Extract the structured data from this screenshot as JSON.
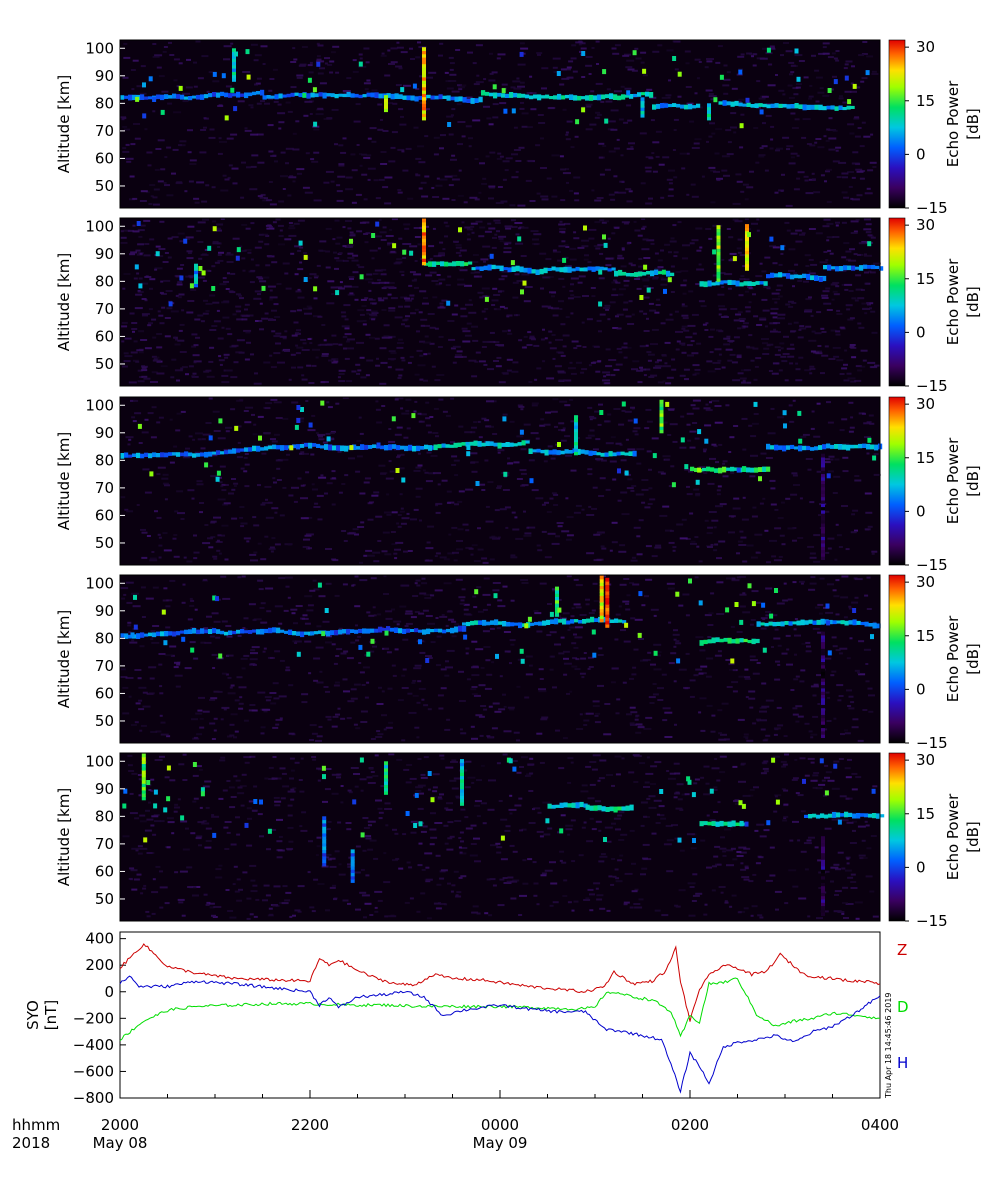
{
  "chart_data": [
    {
      "type": "heatmap",
      "panel": 1,
      "ylabel": "Altitude [km]",
      "ylim": [
        42,
        103
      ],
      "yticks": [
        50,
        60,
        70,
        80,
        90,
        100
      ],
      "colorbar": {
        "label_line1": "Echo Power",
        "label_line2": "[dB]",
        "range": [
          -15,
          32
        ],
        "ticks": [
          30,
          15,
          0,
          -15
        ]
      },
      "layers": [
        {
          "t0": 20.0,
          "t1": 21.5,
          "alt": 82,
          "power": 2
        },
        {
          "t0": 21.5,
          "t1": 23.8,
          "alt": 82,
          "power": 3
        },
        {
          "t0": 23.8,
          "t1": 25.6,
          "alt": 84,
          "power": 8
        },
        {
          "t0": 25.6,
          "t1": 26.1,
          "alt": 79,
          "power": 5
        },
        {
          "t0": 26.3,
          "t1": 27.7,
          "alt": 80,
          "power": 6
        }
      ],
      "columns": [
        {
          "t": 23.2,
          "a0": 74,
          "a1": 100,
          "power": 24
        },
        {
          "t": 22.8,
          "a0": 77,
          "a1": 82,
          "power": 18
        },
        {
          "t": 21.2,
          "a0": 88,
          "a1": 99,
          "power": 8
        },
        {
          "t": 25.5,
          "a0": 75,
          "a1": 82,
          "power": 6
        },
        {
          "t": 26.2,
          "a0": 74,
          "a1": 80,
          "power": 10
        }
      ]
    },
    {
      "type": "heatmap",
      "panel": 2,
      "ylabel": "Altitude [km]",
      "ylim": [
        42,
        103
      ],
      "yticks": [
        50,
        60,
        70,
        80,
        90,
        100
      ],
      "colorbar": {
        "label_line1": "Echo Power",
        "label_line2": "[dB]",
        "range": [
          -15,
          32
        ],
        "ticks": [
          30,
          15,
          0,
          -15
        ]
      },
      "layers": [
        {
          "t0": 23.2,
          "t1": 23.7,
          "alt": 86,
          "power": 10
        },
        {
          "t0": 23.7,
          "t1": 25.2,
          "alt": 85,
          "power": 5
        },
        {
          "t0": 25.2,
          "t1": 25.8,
          "alt": 83,
          "power": 8
        },
        {
          "t0": 26.1,
          "t1": 26.8,
          "alt": 79,
          "power": 6
        },
        {
          "t0": 26.8,
          "t1": 27.4,
          "alt": 82,
          "power": 4
        },
        {
          "t0": 27.4,
          "t1": 28.0,
          "alt": 85,
          "power": 3
        }
      ],
      "columns": [
        {
          "t": 23.2,
          "a0": 86,
          "a1": 102,
          "power": 26
        },
        {
          "t": 26.3,
          "a0": 80,
          "a1": 100,
          "power": 18
        },
        {
          "t": 26.6,
          "a0": 84,
          "a1": 100,
          "power": 22
        },
        {
          "t": 20.8,
          "a0": 78,
          "a1": 86,
          "power": 6
        }
      ]
    },
    {
      "type": "heatmap",
      "panel": 3,
      "ylabel": "Altitude [km]",
      "ylim": [
        42,
        103
      ],
      "yticks": [
        50,
        60,
        70,
        80,
        90,
        100
      ],
      "colorbar": {
        "label_line1": "Echo Power",
        "label_line2": "[dB]",
        "range": [
          -15,
          32
        ],
        "ticks": [
          30,
          15,
          0,
          -15
        ]
      },
      "layers": [
        {
          "t0": 20.0,
          "t1": 23.3,
          "alt": 82,
          "power": 3
        },
        {
          "t0": 23.3,
          "t1": 24.3,
          "alt": 85,
          "power": 8
        },
        {
          "t0": 24.3,
          "t1": 25.4,
          "alt": 83,
          "power": 6
        },
        {
          "t0": 26.0,
          "t1": 26.8,
          "alt": 77,
          "power": 12
        },
        {
          "t0": 26.8,
          "t1": 28.0,
          "alt": 85,
          "power": 5
        }
      ],
      "columns": [
        {
          "t": 25.7,
          "a0": 90,
          "a1": 101,
          "power": 16
        },
        {
          "t": 24.8,
          "a0": 82,
          "a1": 96,
          "power": 8
        },
        {
          "t": 27.4,
          "a0": 44,
          "a1": 82,
          "power": -10
        }
      ]
    },
    {
      "type": "heatmap",
      "panel": 4,
      "ylabel": "Altitude [km]",
      "ylim": [
        42,
        103
      ],
      "yticks": [
        50,
        60,
        70,
        80,
        90,
        100
      ],
      "colorbar": {
        "label_line1": "Echo Power",
        "label_line2": "[dB]",
        "range": [
          -15,
          32
        ],
        "ticks": [
          30,
          15,
          0,
          -15
        ]
      },
      "layers": [
        {
          "t0": 20.0,
          "t1": 22.0,
          "alt": 81,
          "power": 3
        },
        {
          "t0": 22.0,
          "t1": 23.6,
          "alt": 82,
          "power": 2
        },
        {
          "t0": 23.6,
          "t1": 25.3,
          "alt": 85,
          "power": 6
        },
        {
          "t0": 26.1,
          "t1": 26.7,
          "alt": 78,
          "power": 12
        },
        {
          "t0": 26.7,
          "t1": 28.0,
          "alt": 85,
          "power": 6
        }
      ],
      "columns": [
        {
          "t": 25.13,
          "a0": 84,
          "a1": 102,
          "power": 30
        },
        {
          "t": 25.07,
          "a0": 86,
          "a1": 102,
          "power": 22
        },
        {
          "t": 24.6,
          "a0": 88,
          "a1": 98,
          "power": 12
        },
        {
          "t": 27.4,
          "a0": 44,
          "a1": 82,
          "power": -10
        }
      ]
    },
    {
      "type": "heatmap",
      "panel": 5,
      "ylabel": "Altitude [km]",
      "ylim": [
        42,
        103
      ],
      "yticks": [
        50,
        60,
        70,
        80,
        90,
        100
      ],
      "colorbar": {
        "label_line1": "Echo Power",
        "label_line2": "[dB]",
        "range": [
          -15,
          32
        ],
        "ticks": [
          30,
          15,
          0,
          -15
        ]
      },
      "layers": [
        {
          "t0": 24.5,
          "t1": 24.9,
          "alt": 84,
          "power": 8
        },
        {
          "t0": 24.9,
          "t1": 25.4,
          "alt": 83,
          "power": 10
        },
        {
          "t0": 26.1,
          "t1": 26.6,
          "alt": 77,
          "power": 10
        },
        {
          "t0": 27.2,
          "t1": 28.0,
          "alt": 80,
          "power": 5
        }
      ],
      "columns": [
        {
          "t": 20.25,
          "a0": 86,
          "a1": 102,
          "power": 15
        },
        {
          "t": 22.8,
          "a0": 88,
          "a1": 100,
          "power": 10
        },
        {
          "t": 23.6,
          "a0": 84,
          "a1": 100,
          "power": 8
        },
        {
          "t": 22.15,
          "a0": 62,
          "a1": 80,
          "power": 2
        },
        {
          "t": 22.45,
          "a0": 56,
          "a1": 68,
          "power": 2
        },
        {
          "t": 27.4,
          "a0": 44,
          "a1": 72,
          "power": -10
        }
      ]
    },
    {
      "type": "line",
      "ylabel_line1": "SYO",
      "ylabel_line2": "[nT]",
      "ylim": [
        -800,
        450
      ],
      "yticks": [
        400,
        200,
        0,
        -200,
        -400,
        -600,
        -800
      ],
      "xlim_hours": [
        20,
        28
      ],
      "series": [
        {
          "name": "Z",
          "color": "#cc0000",
          "t": [
            20.0,
            20.25,
            20.5,
            20.8,
            21.2,
            21.6,
            22.0,
            22.1,
            22.2,
            22.3,
            22.5,
            22.7,
            22.9,
            23.1,
            23.3,
            23.5,
            23.8,
            24.0,
            24.3,
            24.6,
            24.9,
            25.1,
            25.2,
            25.4,
            25.6,
            25.75,
            25.85,
            25.9,
            26.0,
            26.1,
            26.2,
            26.35,
            26.5,
            26.65,
            26.8,
            26.95,
            27.1,
            27.2,
            27.35,
            27.5,
            27.7,
            27.9,
            28.0
          ],
          "v": [
            180,
            360,
            190,
            140,
            100,
            90,
            80,
            250,
            200,
            240,
            160,
            100,
            60,
            50,
            130,
            100,
            90,
            70,
            40,
            20,
            0,
            40,
            150,
            60,
            80,
            160,
            330,
            80,
            -220,
            20,
            120,
            200,
            180,
            130,
            150,
            280,
            190,
            130,
            110,
            100,
            80,
            80,
            60
          ]
        },
        {
          "name": "D",
          "color": "#00dd00",
          "t": [
            20.0,
            20.25,
            20.5,
            20.8,
            21.2,
            21.6,
            22.0,
            22.4,
            22.8,
            23.2,
            23.6,
            24.0,
            24.4,
            24.8,
            25.0,
            25.1,
            25.2,
            25.4,
            25.6,
            25.8,
            25.9,
            26.0,
            26.1,
            26.2,
            26.35,
            26.5,
            26.7,
            26.9,
            27.1,
            27.3,
            27.5,
            27.8,
            28.0
          ],
          "v": [
            -360,
            -220,
            -140,
            -110,
            -100,
            -90,
            -90,
            -100,
            -100,
            -110,
            -110,
            -110,
            -120,
            -130,
            -120,
            -20,
            0,
            -40,
            -60,
            -150,
            -340,
            -180,
            -230,
            60,
            70,
            100,
            -170,
            -260,
            -220,
            -200,
            -160,
            -180,
            -200
          ]
        },
        {
          "name": "H",
          "color": "#0000cc",
          "t": [
            20.0,
            20.1,
            20.2,
            20.5,
            20.8,
            21.2,
            21.6,
            22.0,
            22.1,
            22.2,
            22.3,
            22.5,
            22.8,
            23.0,
            23.2,
            23.4,
            23.6,
            23.8,
            24.0,
            24.3,
            24.6,
            24.9,
            25.1,
            25.3,
            25.5,
            25.7,
            25.8,
            25.9,
            26.0,
            26.1,
            26.2,
            26.35,
            26.5,
            26.7,
            26.9,
            27.1,
            27.3,
            27.5,
            27.7,
            27.9,
            28.0
          ],
          "v": [
            60,
            120,
            40,
            40,
            80,
            60,
            30,
            0,
            -100,
            -40,
            -120,
            -40,
            -20,
            0,
            -40,
            -180,
            -140,
            -120,
            -100,
            -130,
            -150,
            -150,
            -280,
            -300,
            -330,
            -360,
            -550,
            -750,
            -460,
            -560,
            -690,
            -420,
            -380,
            -360,
            -330,
            -380,
            -300,
            -260,
            -180,
            -80,
            -30
          ]
        }
      ]
    }
  ],
  "xaxis": {
    "label_line1": "hhmm",
    "label_line2": "2018",
    "ticks": [
      {
        "t": 20,
        "label": "2000",
        "date": "May 08"
      },
      {
        "t": 22,
        "label": "2200",
        "date": ""
      },
      {
        "t": 24,
        "label": "0000",
        "date": "May 09"
      },
      {
        "t": 26,
        "label": "0200",
        "date": ""
      },
      {
        "t": 28,
        "label": "0400",
        "date": ""
      }
    ]
  },
  "timestamp": "Thu Apr 18 14:45:46 2019"
}
